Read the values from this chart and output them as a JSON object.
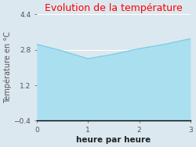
{
  "title": "Evolution de la température",
  "title_color": "#ff0000",
  "xlabel": "heure par heure",
  "ylabel": "Température en °C",
  "x": [
    0,
    0.5,
    1,
    1.25,
    1.5,
    2,
    2.5,
    3
  ],
  "y": [
    3.05,
    2.75,
    2.4,
    2.5,
    2.6,
    2.85,
    3.05,
    3.3
  ],
  "ylim": [
    -0.4,
    4.4
  ],
  "xlim": [
    0,
    3
  ],
  "yticks": [
    -0.4,
    1.2,
    2.8,
    4.4
  ],
  "xticks": [
    0,
    1,
    2,
    3
  ],
  "line_color": "#7acfe0",
  "fill_color": "#aadff0",
  "fill_alpha": 1.0,
  "bg_color": "#dce8f0",
  "plot_bg_color": "#dce8f0",
  "grid_color": "#ffffff",
  "title_fontsize": 9,
  "label_fontsize": 7,
  "tick_fontsize": 6.5,
  "xlabel_fontsize": 7.5
}
